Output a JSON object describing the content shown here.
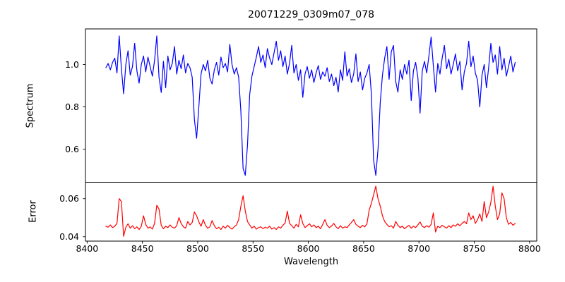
{
  "chart_data": {
    "type": "line",
    "title": "20071229_0309m07_078",
    "xlabel": "Wavelength",
    "x_start": 8417,
    "x_step": 2,
    "n_points": 186,
    "xlim": [
      8398.5,
      8806.5
    ],
    "x_ticks": [
      8400,
      8450,
      8500,
      8550,
      8600,
      8650,
      8700,
      8750,
      8800
    ],
    "x_tick_labels": [
      "8400",
      "8450",
      "8500",
      "8550",
      "8600",
      "8650",
      "8700",
      "8750",
      "8800"
    ],
    "grid": false,
    "legend": "none",
    "spine_color": "#000000",
    "panels": [
      {
        "name": "spectrum",
        "ylabel": "Spectrum",
        "ylim": [
          0.4445,
          1.168
        ],
        "y_ticks": [
          0.6,
          0.8,
          1.0
        ],
        "y_tick_labels": [
          "0.6",
          "0.8",
          "1.0"
        ],
        "line_color": "#0000ff",
        "values": [
          0.985,
          1.005,
          0.975,
          1.01,
          1.03,
          0.96,
          1.135,
          0.98,
          0.862,
          1.0,
          1.065,
          0.95,
          0.99,
          1.1,
          0.97,
          0.912,
          1.0,
          1.04,
          0.965,
          1.035,
          0.99,
          0.945,
          1.02,
          1.135,
          0.94,
          0.868,
          1.015,
          0.89,
          1.04,
          0.975,
          1.005,
          1.085,
          0.955,
          1.02,
          0.98,
          1.045,
          0.96,
          1.005,
          0.985,
          0.94,
          0.74,
          0.652,
          0.8,
          0.955,
          1.0,
          0.97,
          1.02,
          0.935,
          0.908,
          0.975,
          1.01,
          0.95,
          1.035,
          0.985,
          1.005,
          0.965,
          1.095,
          1.0,
          0.955,
          0.985,
          0.94,
          0.78,
          0.51,
          0.477,
          0.62,
          0.86,
          0.945,
          0.99,
          1.035,
          1.085,
          1.01,
          1.045,
          0.985,
          1.075,
          1.03,
          1.0,
          1.055,
          1.11,
          1.02,
          1.065,
          0.99,
          1.04,
          0.955,
          1.005,
          1.09,
          0.96,
          1.0,
          0.925,
          0.975,
          0.845,
          0.955,
          0.99,
          0.935,
          0.975,
          0.915,
          0.96,
          0.995,
          0.93,
          0.965,
          0.945,
          0.985,
          0.92,
          0.955,
          0.9,
          0.94,
          0.87,
          0.975,
          0.925,
          1.06,
          0.945,
          0.98,
          0.915,
          0.955,
          1.05,
          0.92,
          0.965,
          0.88,
          0.935,
          0.96,
          1.0,
          0.86,
          0.55,
          0.477,
          0.6,
          0.82,
          0.95,
          1.03,
          1.085,
          0.93,
          1.06,
          1.09,
          0.92,
          0.87,
          0.975,
          0.93,
          1.0,
          0.955,
          1.02,
          0.83,
          0.97,
          1.01,
          0.94,
          0.77,
          0.97,
          1.015,
          0.96,
          1.04,
          1.13,
          0.995,
          0.87,
          1.005,
          0.955,
          1.03,
          1.09,
          0.98,
          1.025,
          0.955,
          1.0,
          1.05,
          0.97,
          1.015,
          0.88,
          0.965,
          1.005,
          1.11,
          0.99,
          1.04,
          0.96,
          0.925,
          0.8,
          0.95,
          1.0,
          0.89,
          0.985,
          1.1,
          1.01,
          1.045,
          0.955,
          1.085,
          0.975,
          1.03,
          0.945,
          0.99,
          1.04,
          0.965,
          1.01
        ]
      },
      {
        "name": "error",
        "ylabel": "Error",
        "ylim": [
          0.0377,
          0.0686
        ],
        "y_ticks": [
          0.04,
          0.06
        ],
        "y_tick_labels": [
          "0.04",
          "0.06"
        ],
        "line_color": "#ff0000",
        "values": [
          0.0455,
          0.045,
          0.0462,
          0.0448,
          0.0455,
          0.047,
          0.06,
          0.0585,
          0.0402,
          0.045,
          0.0468,
          0.0445,
          0.0458,
          0.0442,
          0.0452,
          0.0438,
          0.0455,
          0.051,
          0.0465,
          0.0445,
          0.0452,
          0.044,
          0.047,
          0.0565,
          0.0545,
          0.046,
          0.0442,
          0.0455,
          0.0448,
          0.0462,
          0.045,
          0.0445,
          0.0458,
          0.05,
          0.047,
          0.0452,
          0.0445,
          0.048,
          0.0462,
          0.0475,
          0.053,
          0.051,
          0.0478,
          0.0455,
          0.049,
          0.046,
          0.0445,
          0.0452,
          0.0485,
          0.0458,
          0.0442,
          0.045,
          0.0438,
          0.0455,
          0.0445,
          0.046,
          0.0448,
          0.044,
          0.0452,
          0.0462,
          0.049,
          0.056,
          0.0615,
          0.0535,
          0.048,
          0.0462,
          0.0445,
          0.0455,
          0.044,
          0.0448,
          0.0452,
          0.0442,
          0.045,
          0.0445,
          0.0455,
          0.044,
          0.0448,
          0.0438,
          0.0452,
          0.0445,
          0.046,
          0.0472,
          0.0535,
          0.047,
          0.0458,
          0.0445,
          0.0465,
          0.0452,
          0.0515,
          0.047,
          0.0448,
          0.0458,
          0.0468,
          0.0452,
          0.0462,
          0.0448,
          0.0455,
          0.0442,
          0.0465,
          0.049,
          0.046,
          0.0448,
          0.0456,
          0.047,
          0.0452,
          0.0442,
          0.0458,
          0.0445,
          0.0452,
          0.0448,
          0.0462,
          0.0475,
          0.049,
          0.0465,
          0.0455,
          0.0448,
          0.046,
          0.0452,
          0.0468,
          0.054,
          0.0575,
          0.062,
          0.0665,
          0.06,
          0.056,
          0.051,
          0.048,
          0.0465,
          0.0452,
          0.0458,
          0.0445,
          0.048,
          0.046,
          0.0448,
          0.0455,
          0.0442,
          0.0452,
          0.046,
          0.0445,
          0.0455,
          0.0448,
          0.0462,
          0.0478,
          0.0455,
          0.0448,
          0.0458,
          0.045,
          0.0465,
          0.0525,
          0.0425,
          0.0455,
          0.0448,
          0.046,
          0.0452,
          0.0445,
          0.0458,
          0.0448,
          0.0462,
          0.0455,
          0.0468,
          0.0458,
          0.047,
          0.048,
          0.0468,
          0.0525,
          0.049,
          0.051,
          0.047,
          0.049,
          0.052,
          0.048,
          0.0585,
          0.05,
          0.053,
          0.058,
          0.0665,
          0.056,
          0.049,
          0.052,
          0.063,
          0.06,
          0.05,
          0.0465,
          0.0475,
          0.046,
          0.047
        ]
      }
    ]
  }
}
